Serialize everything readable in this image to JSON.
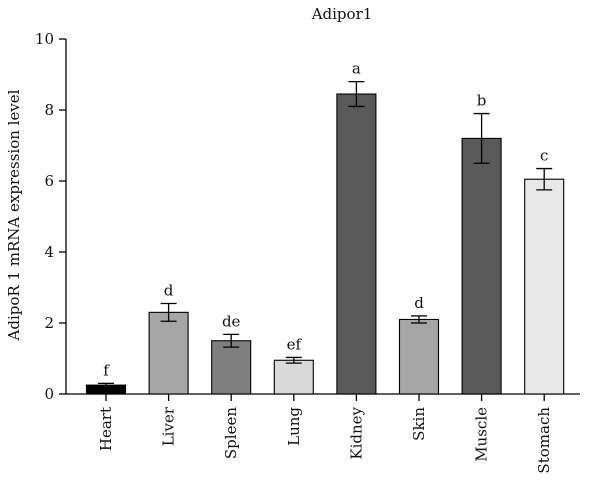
{
  "chart_data": {
    "type": "bar",
    "title": "Adipor1",
    "xlabel": "",
    "ylabel": "AdipoR 1 mRNA expression level",
    "ylim": [
      0,
      10
    ],
    "yticks": [
      0,
      2,
      4,
      6,
      8,
      10
    ],
    "grid": false,
    "categories": [
      "Heart",
      "Liver",
      "Spleen",
      "Lung",
      "Kidney",
      "Skin",
      "Muscle",
      "Stomach"
    ],
    "values": [
      0.25,
      2.3,
      1.5,
      0.95,
      8.45,
      2.1,
      7.2,
      6.05
    ],
    "errors": [
      0.05,
      0.25,
      0.18,
      0.08,
      0.35,
      0.1,
      0.7,
      0.3
    ],
    "significance": [
      "f",
      "d",
      "de",
      "ef",
      "a",
      "d",
      "b",
      "c"
    ],
    "colors": [
      "#000000",
      "#a6a6a6",
      "#7f7f7f",
      "#d9d9d9",
      "#595959",
      "#a6a6a6",
      "#595959",
      "#e8e8e8"
    ]
  }
}
